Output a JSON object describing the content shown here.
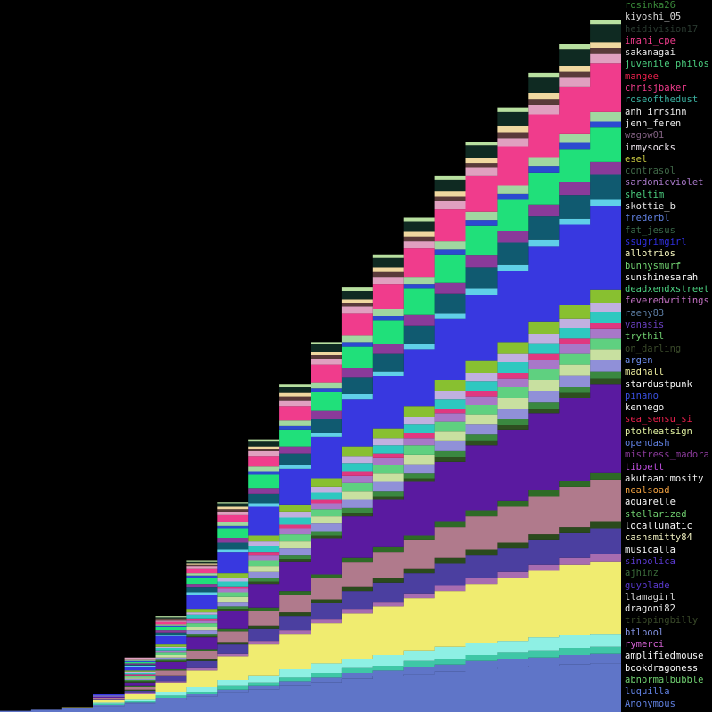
{
  "chart_data": {
    "type": "area",
    "stacked": true,
    "grid": false,
    "legend_position": "right",
    "x": [
      0,
      5,
      10,
      15,
      20,
      25,
      30,
      35,
      40,
      45,
      50,
      55,
      60,
      65,
      70,
      75,
      80,
      85,
      90,
      95,
      100
    ],
    "series": [
      {
        "name": "Anonymous",
        "color": "#5f75c8",
        "values": [
          0.1,
          0.2,
          0.3,
          0.5,
          0.7,
          1.0,
          1.3,
          1.6,
          1.9,
          2.2,
          2.5,
          2.8,
          3.0,
          3.2,
          3.4,
          3.6,
          3.8,
          3.9,
          4.0,
          4.1,
          4.2
        ]
      },
      {
        "name": "luquilla",
        "color": "#5f75c8",
        "values": [
          0,
          0,
          0,
          0.1,
          0.1,
          0.2,
          0.2,
          0.3,
          0.3,
          0.4,
          0.4,
          0.5,
          0.5,
          0.6,
          0.6,
          0.7,
          0.7,
          0.7,
          0.8,
          0.8,
          0.8
        ]
      },
      {
        "name": "abnormalbubble",
        "color": "#3fc7a6",
        "values": [
          0,
          0,
          0,
          0.1,
          0.1,
          0.2,
          0.2,
          0.3,
          0.3,
          0.3,
          0.4,
          0.4,
          0.4,
          0.5,
          0.5,
          0.5,
          0.5,
          0.6,
          0.6,
          0.6,
          0.6
        ]
      },
      {
        "name": "bookdragoness",
        "color": "#8ef0e4",
        "values": [
          0,
          0,
          0,
          0.1,
          0.2,
          0.3,
          0.4,
          0.5,
          0.6,
          0.7,
          0.8,
          0.8,
          0.9,
          0.9,
          1.0,
          1.0,
          1.0,
          1.1,
          1.1,
          1.1,
          1.1
        ]
      },
      {
        "name": "amplifiedmouse",
        "color": "#f0ec70",
        "values": [
          0,
          0,
          0.1,
          0.2,
          0.4,
          0.8,
          1.4,
          2.0,
          2.6,
          3.0,
          3.4,
          3.8,
          4.1,
          4.4,
          4.7,
          5.0,
          5.3,
          5.6,
          5.9,
          6.1,
          6.3
        ]
      },
      {
        "name": "rymerci",
        "color": "#a86cb0",
        "values": [
          0,
          0,
          0,
          0,
          0.1,
          0.1,
          0.2,
          0.2,
          0.3,
          0.3,
          0.3,
          0.4,
          0.4,
          0.4,
          0.5,
          0.5,
          0.5,
          0.5,
          0.6,
          0.6,
          0.6
        ]
      },
      {
        "name": "btlbool",
        "color": "#4b3fa0",
        "values": [
          0,
          0,
          0,
          0.1,
          0.2,
          0.4,
          0.6,
          0.8,
          1.0,
          1.2,
          1.4,
          1.5,
          1.6,
          1.7,
          1.8,
          1.9,
          2.0,
          2.1,
          2.1,
          2.2,
          2.2
        ]
      },
      {
        "name": "trippingbilly",
        "color": "#2a4a1c",
        "values": [
          0,
          0,
          0,
          0,
          0.1,
          0.1,
          0.2,
          0.2,
          0.3,
          0.3,
          0.3,
          0.4,
          0.4,
          0.4,
          0.5,
          0.5,
          0.5,
          0.5,
          0.5,
          0.6,
          0.6
        ]
      },
      {
        "name": "dragoni82",
        "color": "#b07a8c",
        "values": [
          0,
          0,
          0,
          0.1,
          0.2,
          0.4,
          0.6,
          0.9,
          1.2,
          1.5,
          1.8,
          2.0,
          2.2,
          2.4,
          2.6,
          2.8,
          3.0,
          3.2,
          3.4,
          3.5,
          3.6
        ]
      },
      {
        "name": "llamagirl",
        "color": "#2e6a26",
        "values": [
          0,
          0,
          0,
          0,
          0.1,
          0.1,
          0.2,
          0.2,
          0.3,
          0.3,
          0.3,
          0.4,
          0.4,
          0.4,
          0.5,
          0.5,
          0.5,
          0.5,
          0.5,
          0.6,
          0.6
        ]
      },
      {
        "name": "guyblade",
        "color": "#5a1aa0",
        "values": [
          0,
          0,
          0,
          0.1,
          0.3,
          0.6,
          1.0,
          1.5,
          2.0,
          2.5,
          3.0,
          3.5,
          4.0,
          4.5,
          5.0,
          5.5,
          6.0,
          6.5,
          7.0,
          7.4,
          7.8
        ]
      },
      {
        "name": "ajhinz",
        "color": "#2e4e20",
        "values": [
          0,
          0,
          0,
          0,
          0.1,
          0.1,
          0.1,
          0.2,
          0.2,
          0.2,
          0.3,
          0.3,
          0.3,
          0.3,
          0.4,
          0.4,
          0.4,
          0.4,
          0.4,
          0.5,
          0.5
        ]
      },
      {
        "name": "sinbolica",
        "color": "#3a8840",
        "values": [
          0,
          0,
          0,
          0,
          0.1,
          0.1,
          0.2,
          0.2,
          0.3,
          0.3,
          0.3,
          0.4,
          0.4,
          0.4,
          0.5,
          0.5,
          0.5,
          0.5,
          0.5,
          0.6,
          0.6
        ]
      },
      {
        "name": "musicalla",
        "color": "#9090d8",
        "values": [
          0,
          0,
          0,
          0.1,
          0.1,
          0.2,
          0.3,
          0.4,
          0.5,
          0.6,
          0.7,
          0.7,
          0.8,
          0.8,
          0.9,
          0.9,
          0.9,
          1.0,
          1.0,
          1.0,
          1.0
        ]
      },
      {
        "name": "cashsmitty84",
        "color": "#c8e0a0",
        "values": [
          0,
          0,
          0,
          0,
          0.1,
          0.2,
          0.3,
          0.4,
          0.5,
          0.6,
          0.6,
          0.7,
          0.7,
          0.8,
          0.8,
          0.8,
          0.9,
          0.9,
          0.9,
          0.9,
          0.9
        ]
      },
      {
        "name": "locallunatic",
        "color": "#5fd080",
        "values": [
          0,
          0,
          0,
          0,
          0.1,
          0.2,
          0.3,
          0.4,
          0.5,
          0.6,
          0.6,
          0.7,
          0.7,
          0.8,
          0.8,
          0.8,
          0.9,
          0.9,
          0.9,
          0.9,
          0.9
        ]
      },
      {
        "name": "stellarized",
        "color": "#a878c8",
        "values": [
          0,
          0,
          0,
          0,
          0.1,
          0.1,
          0.2,
          0.3,
          0.4,
          0.5,
          0.5,
          0.6,
          0.6,
          0.6,
          0.7,
          0.7,
          0.7,
          0.8,
          0.8,
          0.8,
          0.8
        ]
      },
      {
        "name": "aquarelle",
        "color": "#e03880",
        "values": [
          0,
          0,
          0,
          0,
          0.1,
          0.1,
          0.2,
          0.2,
          0.3,
          0.3,
          0.3,
          0.4,
          0.4,
          0.4,
          0.4,
          0.5,
          0.5,
          0.5,
          0.5,
          0.5,
          0.5
        ]
      },
      {
        "name": "nealsoad",
        "color": "#2ec8c0",
        "values": [
          0,
          0,
          0,
          0,
          0.1,
          0.2,
          0.3,
          0.4,
          0.5,
          0.6,
          0.6,
          0.7,
          0.7,
          0.8,
          0.8,
          0.8,
          0.9,
          0.9,
          0.9,
          0.9,
          0.9
        ]
      },
      {
        "name": "akutaanimosity",
        "color": "#c0b0e0",
        "values": [
          0,
          0,
          0,
          0,
          0.1,
          0.1,
          0.2,
          0.3,
          0.4,
          0.5,
          0.5,
          0.6,
          0.6,
          0.6,
          0.7,
          0.7,
          0.7,
          0.8,
          0.8,
          0.8,
          0.8
        ]
      },
      {
        "name": "tibbett",
        "color": "#88c030",
        "values": [
          0,
          0,
          0,
          0,
          0.1,
          0.2,
          0.3,
          0.4,
          0.5,
          0.6,
          0.7,
          0.8,
          0.8,
          0.9,
          0.9,
          1.0,
          1.0,
          1.0,
          1.1,
          1.1,
          1.1
        ]
      },
      {
        "name": "mistress_madora",
        "color": "#3838e0",
        "values": [
          0,
          0,
          0,
          0.1,
          0.3,
          0.7,
          1.2,
          1.8,
          2.4,
          3.0,
          3.5,
          4.0,
          4.4,
          4.8,
          5.2,
          5.6,
          6.0,
          6.4,
          6.8,
          7.1,
          7.4
        ]
      },
      {
        "name": "opendash",
        "color": "#60d0e8",
        "values": [
          0,
          0,
          0,
          0,
          0.1,
          0.1,
          0.2,
          0.2,
          0.3,
          0.3,
          0.3,
          0.4,
          0.4,
          0.4,
          0.4,
          0.5,
          0.5,
          0.5,
          0.5,
          0.5,
          0.5
        ]
      },
      {
        "name": "ptotheatsign",
        "color": "#105a70",
        "values": [
          0,
          0,
          0,
          0,
          0.1,
          0.2,
          0.4,
          0.6,
          0.8,
          1.0,
          1.2,
          1.4,
          1.5,
          1.6,
          1.7,
          1.8,
          1.9,
          2.0,
          2.0,
          2.1,
          2.1
        ]
      },
      {
        "name": "sea_sensu_si",
        "color": "#8a3a9a",
        "values": [
          0,
          0,
          0,
          0,
          0.1,
          0.2,
          0.3,
          0.4,
          0.5,
          0.6,
          0.7,
          0.8,
          0.8,
          0.9,
          0.9,
          1.0,
          1.0,
          1.0,
          1.1,
          1.1,
          1.1
        ]
      },
      {
        "name": "kennego",
        "color": "#20e07a",
        "values": [
          0,
          0,
          0,
          0,
          0.1,
          0.3,
          0.5,
          0.8,
          1.1,
          1.4,
          1.6,
          1.8,
          2.0,
          2.2,
          2.4,
          2.5,
          2.6,
          2.7,
          2.8,
          2.9,
          3.0
        ]
      },
      {
        "name": "pinano",
        "color": "#2c4ad0",
        "values": [
          0,
          0,
          0,
          0,
          0.1,
          0.1,
          0.2,
          0.2,
          0.3,
          0.3,
          0.3,
          0.4,
          0.4,
          0.4,
          0.4,
          0.5,
          0.5,
          0.5,
          0.5,
          0.5,
          0.5
        ]
      },
      {
        "name": "stardustpunk",
        "color": "#a0d8a0",
        "values": [
          0,
          0,
          0,
          0,
          0.1,
          0.1,
          0.2,
          0.3,
          0.4,
          0.5,
          0.5,
          0.6,
          0.6,
          0.6,
          0.7,
          0.7,
          0.7,
          0.8,
          0.8,
          0.8,
          0.8
        ]
      },
      {
        "name": "madhall",
        "color": "#f03c8c",
        "values": [
          0,
          0,
          0,
          0,
          0.1,
          0.2,
          0.4,
          0.6,
          0.9,
          1.2,
          1.5,
          1.8,
          2.1,
          2.4,
          2.7,
          3.0,
          3.3,
          3.6,
          3.9,
          4.1,
          4.3
        ]
      },
      {
        "name": "argen",
        "color": "#e0a0c0",
        "values": [
          0,
          0,
          0,
          0,
          0.1,
          0.1,
          0.2,
          0.3,
          0.4,
          0.5,
          0.5,
          0.6,
          0.6,
          0.6,
          0.7,
          0.7,
          0.7,
          0.8,
          0.8,
          0.8,
          0.8
        ]
      },
      {
        "name": "on_darling",
        "color": "#5a3a3a",
        "values": [
          0,
          0,
          0,
          0,
          0,
          0.1,
          0.1,
          0.2,
          0.2,
          0.3,
          0.3,
          0.3,
          0.4,
          0.4,
          0.4,
          0.4,
          0.5,
          0.5,
          0.5,
          0.5,
          0.5
        ]
      },
      {
        "name": "trythil",
        "color": "#f0d8a0",
        "values": [
          0,
          0,
          0,
          0,
          0,
          0.1,
          0.1,
          0.2,
          0.2,
          0.3,
          0.3,
          0.3,
          0.4,
          0.4,
          0.4,
          0.4,
          0.5,
          0.5,
          0.5,
          0.5,
          0.5
        ]
      },
      {
        "name": "vanasis",
        "color": "#0f2a22",
        "values": [
          0,
          0,
          0,
          0,
          0,
          0.1,
          0.2,
          0.3,
          0.4,
          0.5,
          0.6,
          0.7,
          0.8,
          0.9,
          1.0,
          1.1,
          1.2,
          1.3,
          1.4,
          1.5,
          1.6
        ]
      },
      {
        "name": "raeny83",
        "color": "#b8e0a0",
        "values": [
          0,
          0,
          0,
          0,
          0,
          0.1,
          0.1,
          0.1,
          0.2,
          0.2,
          0.2,
          0.3,
          0.3,
          0.3,
          0.3,
          0.3,
          0.4,
          0.4,
          0.4,
          0.4,
          0.4
        ]
      }
    ]
  },
  "legend": [
    {
      "label": "rosinka26",
      "color": "#3a8a3a"
    },
    {
      "label": "kiyoshi_05",
      "color": "#d8d8d8"
    },
    {
      "label": "heidivision17",
      "color": "#2a3a30"
    },
    {
      "label": "imani_cpe",
      "color": "#f03c8c"
    },
    {
      "label": "sakanagai",
      "color": "#e8e8e8"
    },
    {
      "label": "juvenile_philos",
      "color": "#4cd080"
    },
    {
      "label": "mangee",
      "color": "#e8204c"
    },
    {
      "label": "chrisjbaker",
      "color": "#f03c8c"
    },
    {
      "label": "roseofthedust",
      "color": "#3ab0a0"
    },
    {
      "label": "anh_irrsinn",
      "color": "#e8e8e8"
    },
    {
      "label": "jenn_feren",
      "color": "#e8e8e8"
    },
    {
      "label": "wagow01",
      "color": "#806080"
    },
    {
      "label": "inmysocks",
      "color": "#f0e8f0"
    },
    {
      "label": "esel",
      "color": "#c8c840"
    },
    {
      "label": "contrasol",
      "color": "#406848"
    },
    {
      "label": "sardonicviolet",
      "color": "#a878c8"
    },
    {
      "label": "sheltim",
      "color": "#4cd080"
    },
    {
      "label": "skottie_b",
      "color": "#e8e8e8"
    },
    {
      "label": "frederbl",
      "color": "#6080e0"
    },
    {
      "label": "fat_jesus",
      "color": "#3a6a4a"
    },
    {
      "label": "ssugrimgirl",
      "color": "#3030e0"
    },
    {
      "label": "allotrios",
      "color": "#f8f8c0"
    },
    {
      "label": "bunnysmurf",
      "color": "#70d070"
    },
    {
      "label": "sunshinesarah",
      "color": "#f8f8f8"
    },
    {
      "label": "deadxendxstreet",
      "color": "#4cd080"
    },
    {
      "label": "feveredwritings",
      "color": "#c070c0"
    },
    {
      "label": "raeny83",
      "color": "#5a7aa0"
    },
    {
      "label": "vanasis",
      "color": "#6a40c0"
    },
    {
      "label": "trythil",
      "color": "#70d070"
    },
    {
      "label": "on_darling",
      "color": "#3a4a2a"
    },
    {
      "label": "argen",
      "color": "#7090f0"
    },
    {
      "label": "madhall",
      "color": "#f0f0a0"
    },
    {
      "label": "stardustpunk",
      "color": "#f8f8f8"
    },
    {
      "label": "pinano",
      "color": "#3a50e0"
    },
    {
      "label": "kennego",
      "color": "#f0f0f0"
    },
    {
      "label": "sea_sensu_si",
      "color": "#e8204c"
    },
    {
      "label": "ptotheatsign",
      "color": "#e0f0a0"
    },
    {
      "label": "opendash",
      "color": "#6080e0"
    },
    {
      "label": "mistress_madora",
      "color": "#8a3a9a"
    },
    {
      "label": "tibbett",
      "color": "#c050e0"
    },
    {
      "label": "akutaanimosity",
      "color": "#f0f0f0"
    },
    {
      "label": "nealsoad",
      "color": "#f0a040"
    },
    {
      "label": "aquarelle",
      "color": "#f8f8f8"
    },
    {
      "label": "stellarized",
      "color": "#70d070"
    },
    {
      "label": "locallunatic",
      "color": "#f8f8f8"
    },
    {
      "label": "cashsmitty84",
      "color": "#f0f0c0"
    },
    {
      "label": "musicalla",
      "color": "#f8f8f8"
    },
    {
      "label": "sinbolica",
      "color": "#5a3ad0"
    },
    {
      "label": "ajhinz",
      "color": "#3a6a3a"
    },
    {
      "label": "guyblade",
      "color": "#5a3ad0"
    },
    {
      "label": "llamagirl",
      "color": "#d8d8d8"
    },
    {
      "label": "dragoni82",
      "color": "#e8e8e8"
    },
    {
      "label": "trippingbilly",
      "color": "#3a4a2a"
    },
    {
      "label": "btlbool",
      "color": "#8090e0"
    },
    {
      "label": "rymerci",
      "color": "#d060d0"
    },
    {
      "label": "amplifiedmouse",
      "color": "#f8f8f8"
    },
    {
      "label": "bookdragoness",
      "color": "#f8f8f8"
    },
    {
      "label": "abnormalbubble",
      "color": "#70d070"
    },
    {
      "label": "luquilla",
      "color": "#6080e0"
    },
    {
      "label": "Anonymous",
      "color": "#6080e0"
    }
  ]
}
